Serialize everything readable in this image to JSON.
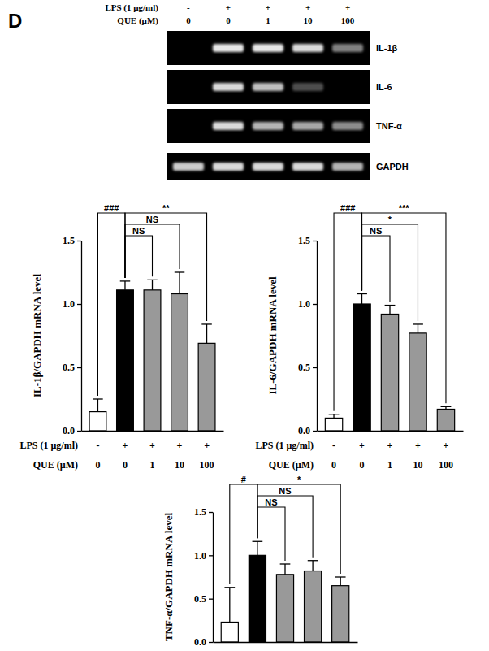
{
  "panel_label": "D",
  "gel": {
    "header_rows": [
      {
        "label": "LPS (1 µg/ml)",
        "values": [
          "-",
          "+",
          "+",
          "+",
          "+"
        ]
      },
      {
        "label": "QUE (µM)",
        "values": [
          "0",
          "0",
          "1",
          "10",
          "100"
        ]
      }
    ],
    "bands": [
      {
        "name": "IL-1β",
        "intensity": [
          0,
          0.9,
          0.9,
          0.85,
          0.5
        ]
      },
      {
        "name": "IL-6",
        "intensity": [
          0,
          0.85,
          0.75,
          0.3,
          0
        ]
      },
      {
        "name": "TNF-α",
        "intensity": [
          0,
          0.85,
          0.7,
          0.65,
          0.55
        ]
      },
      {
        "name": "GAPDH",
        "intensity": [
          0.8,
          0.85,
          0.85,
          0.85,
          0.7
        ]
      }
    ]
  },
  "chart_data": [
    {
      "type": "bar",
      "y_label": "IL-1β/GAPDH mRNA level",
      "x_rows": [
        {
          "label": "LPS (1 µg/ml)",
          "values": [
            "-",
            "+",
            "+",
            "+",
            "+"
          ]
        },
        {
          "label": "QUE (µM)",
          "values": [
            "0",
            "0",
            "1",
            "10",
            "100"
          ]
        }
      ],
      "values": [
        0.15,
        1.11,
        1.11,
        1.08,
        0.69
      ],
      "errors": [
        0.1,
        0.07,
        0.08,
        0.17,
        0.15
      ],
      "colors": [
        "#ffffff",
        "#000000",
        "#999999",
        "#999999",
        "#999999"
      ],
      "ylim": [
        0,
        1.5
      ],
      "yticks": [
        {
          "value": 0,
          "label": "0.0"
        },
        {
          "value": 0.5,
          "label": "0.5"
        },
        {
          "value": 1,
          "label": "1.0"
        },
        {
          "value": 1.5,
          "label": "1.5"
        }
      ],
      "comparisons": [
        {
          "from": 0,
          "to": 1,
          "label": "###"
        },
        {
          "from": 1,
          "to": 2,
          "label": "NS"
        },
        {
          "from": 1,
          "to": 3,
          "label": "NS"
        },
        {
          "from": 1,
          "to": 4,
          "label": "**"
        }
      ]
    },
    {
      "type": "bar",
      "y_label": "IL-6/GAPDH mRNA level",
      "x_rows": [
        {
          "label": "LPS (1 µg/ml)",
          "values": [
            "-",
            "+",
            "+",
            "+",
            "+"
          ]
        },
        {
          "label": "QUE (µM)",
          "values": [
            "0",
            "0",
            "1",
            "10",
            "100"
          ]
        }
      ],
      "values": [
        0.1,
        1.0,
        0.92,
        0.77,
        0.17
      ],
      "errors": [
        0.03,
        0.08,
        0.07,
        0.07,
        0.02
      ],
      "colors": [
        "#ffffff",
        "#000000",
        "#999999",
        "#999999",
        "#999999"
      ],
      "ylim": [
        0,
        1.5
      ],
      "yticks": [
        {
          "value": 0,
          "label": "0.0"
        },
        {
          "value": 0.5,
          "label": "0.5"
        },
        {
          "value": 1,
          "label": "1.0"
        },
        {
          "value": 1.5,
          "label": "1.5"
        }
      ],
      "comparisons": [
        {
          "from": 0,
          "to": 1,
          "label": "###"
        },
        {
          "from": 1,
          "to": 2,
          "label": "NS"
        },
        {
          "from": 1,
          "to": 3,
          "label": "*"
        },
        {
          "from": 1,
          "to": 4,
          "label": "***"
        }
      ]
    },
    {
      "type": "bar",
      "y_label": "TNF-α/GAPDH mRNA level",
      "values": [
        0.23,
        1.0,
        0.78,
        0.82,
        0.65
      ],
      "errors": [
        0.4,
        0.16,
        0.12,
        0.12,
        0.1
      ],
      "colors": [
        "#ffffff",
        "#000000",
        "#999999",
        "#999999",
        "#999999"
      ],
      "ylim": [
        0,
        1.5
      ],
      "yticks": [
        {
          "value": 0,
          "label": "0.0"
        },
        {
          "value": 0.5,
          "label": "0.5"
        },
        {
          "value": 1,
          "label": "1.0"
        },
        {
          "value": 1.5,
          "label": "1.5"
        }
      ],
      "comparisons": [
        {
          "from": 0,
          "to": 1,
          "label": "#"
        },
        {
          "from": 1,
          "to": 2,
          "label": "NS"
        },
        {
          "from": 1,
          "to": 3,
          "label": "NS"
        },
        {
          "from": 1,
          "to": 4,
          "label": "*"
        }
      ]
    }
  ]
}
